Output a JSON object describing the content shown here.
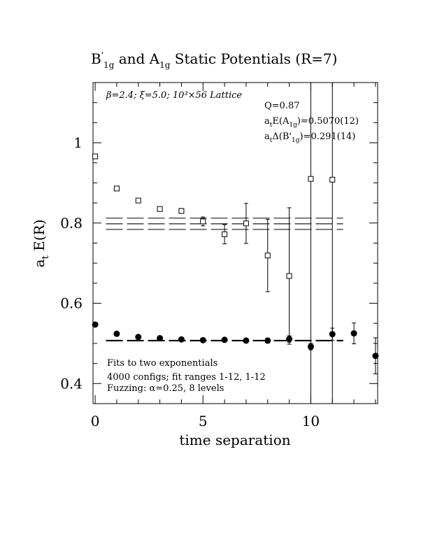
{
  "chart_data": {
    "type": "scatter",
    "title": "B'1g and A1g Static Potentials (R=7)",
    "title_parts": {
      "b_main": "B",
      "b_prime": "'",
      "b_sub": "1g",
      "and": " and ",
      "a_main": "A",
      "a_sub": "1g",
      "rest": " Static Potentials (R=7)"
    },
    "xlabel": "time separation",
    "ylabel": "a",
    "ylabel_sub": "t",
    "ylabel_rest": " E(R)",
    "xlim": [
      -0.1,
      13.1
    ],
    "ylim": [
      0.35,
      1.15
    ],
    "x_ticks": [
      0,
      5,
      10
    ],
    "x_tick_labels": [
      "0",
      "5",
      "10"
    ],
    "y_ticks": [
      0.4,
      0.6,
      0.8,
      1.0
    ],
    "y_tick_labels": [
      "0.4",
      "0.6",
      "0.8",
      "1"
    ],
    "x_minor_step": 1,
    "y_minor_step": 0.05,
    "lattice_label": "β=2.4; ξ=5.0; 10³×56 Lattice",
    "fit_text": {
      "q": "Q=0.87",
      "a1_pre": "a",
      "a1_sub": "t",
      "a1_mid": "E(A",
      "a1_sub2": "1g",
      "a1_post": ")=0.5070(12)",
      "b1_pre": "a",
      "b1_sub": "t",
      "b1_mid": "Δ(B'",
      "b1_sub2": "1g",
      "b1_post": ")=0.291(14)"
    },
    "notes": [
      "Fits to two exponentials",
      "4000 configs; fit ranges 1-12, 1-12",
      "Fuzzing: α=0.25, 8 levels"
    ],
    "series": [
      {
        "name": "B'1g",
        "marker": "open-square",
        "x": [
          0,
          1,
          2,
          3,
          4,
          5,
          6,
          7,
          8,
          9,
          10,
          11
        ],
        "y": [
          0.966,
          0.886,
          0.856,
          0.835,
          0.83,
          0.804,
          0.772,
          0.799,
          0.719,
          0.668,
          0.91,
          0.908
        ],
        "err": [
          0.004,
          0.004,
          0.004,
          0.005,
          0.006,
          0.011,
          0.024,
          0.05,
          0.09,
          0.17,
          0.6,
          0.6
        ]
      },
      {
        "name": "A1g",
        "marker": "filled-circle",
        "x": [
          0,
          1,
          2,
          3,
          4,
          5,
          6,
          7,
          8,
          9,
          10,
          11,
          12,
          13
        ],
        "y": [
          0.547,
          0.524,
          0.516,
          0.513,
          0.51,
          0.508,
          0.509,
          0.507,
          0.507,
          0.511,
          0.492,
          0.523,
          0.525,
          0.469
        ],
        "err": [
          0.002,
          0.002,
          0.002,
          0.002,
          0.003,
          0.003,
          0.003,
          0.004,
          0.006,
          0.008,
          0.008,
          0.015,
          0.026,
          0.045
        ]
      }
    ],
    "fit_bands": [
      {
        "name": "B'1g fit",
        "x_range": [
          0.5,
          11.5
        ],
        "center": 0.798,
        "low": 0.784,
        "high": 0.812
      },
      {
        "name": "A1g fit",
        "x_range": [
          0.5,
          11.5
        ],
        "center": 0.507,
        "low": 0.506,
        "high": 0.508
      }
    ]
  }
}
